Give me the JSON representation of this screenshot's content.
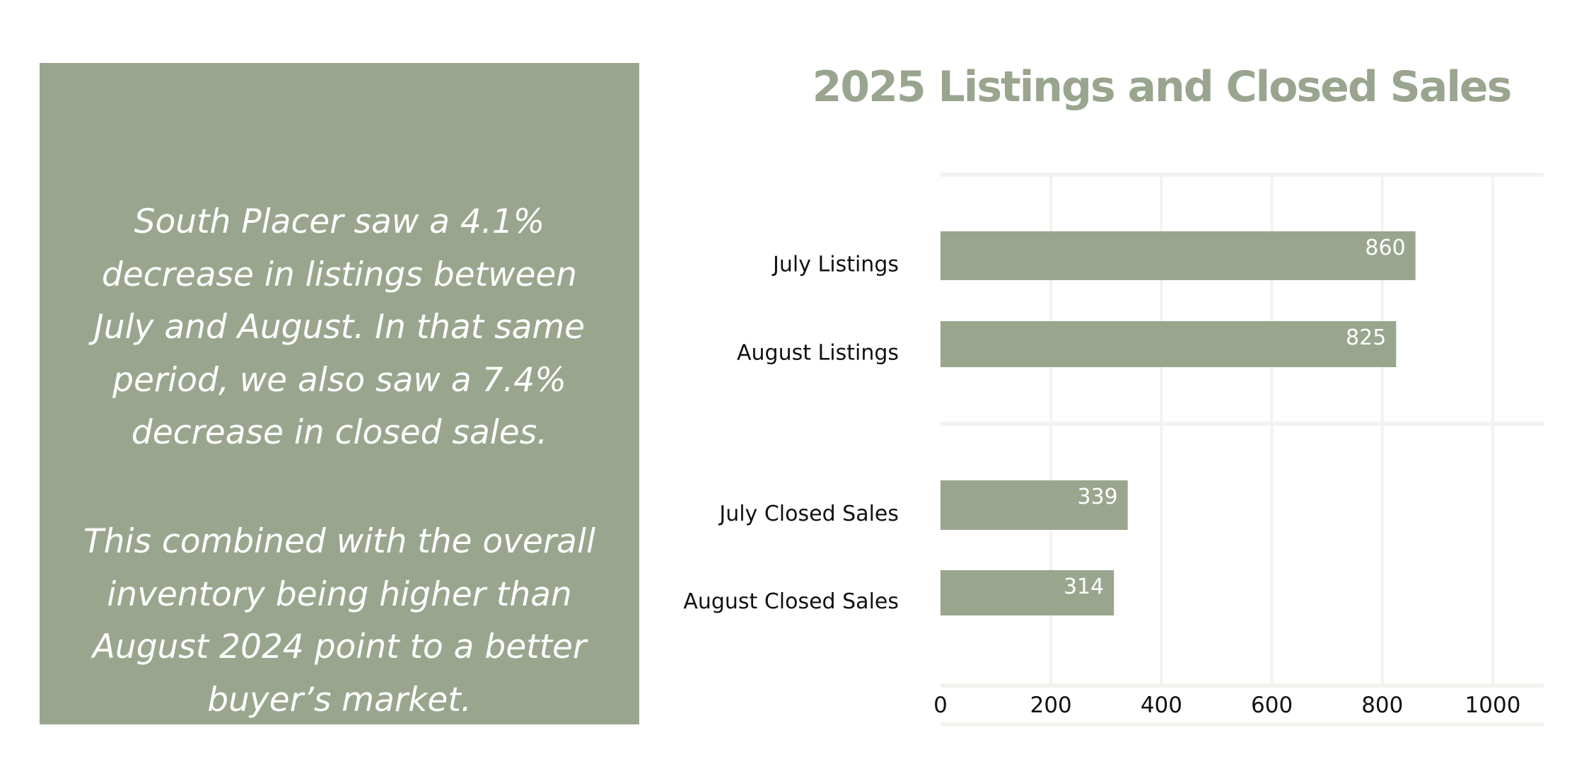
{
  "callout": {
    "paragraph1": "South Placer saw a 4.1% decrease in listings between July and August. In that same period, we also saw a 7.4% decrease in closed sales.",
    "paragraph2": "This combined with the overall inventory being higher than August 2024 point to a better buyer’s market.",
    "background_color": "#9aa58e"
  },
  "chart_data": {
    "type": "bar",
    "orientation": "horizontal",
    "title": "2025 Listings and Closed Sales",
    "categories": [
      "July Listings",
      "August Listings",
      "July Closed Sales",
      "August Closed Sales"
    ],
    "values": [
      860,
      825,
      339,
      314
    ],
    "data_labels": [
      "860",
      "825",
      "339",
      "314"
    ],
    "xlim": [
      0,
      1100
    ],
    "x_ticks": [
      0,
      200,
      400,
      600,
      800,
      1000
    ],
    "x_tick_labels": [
      "0",
      "200",
      "400",
      "600",
      "800",
      "1000"
    ],
    "xlabel": "",
    "ylabel": "",
    "grid": true,
    "bar_color": "#9aa58e",
    "grid_color": "#f3f2ef"
  }
}
